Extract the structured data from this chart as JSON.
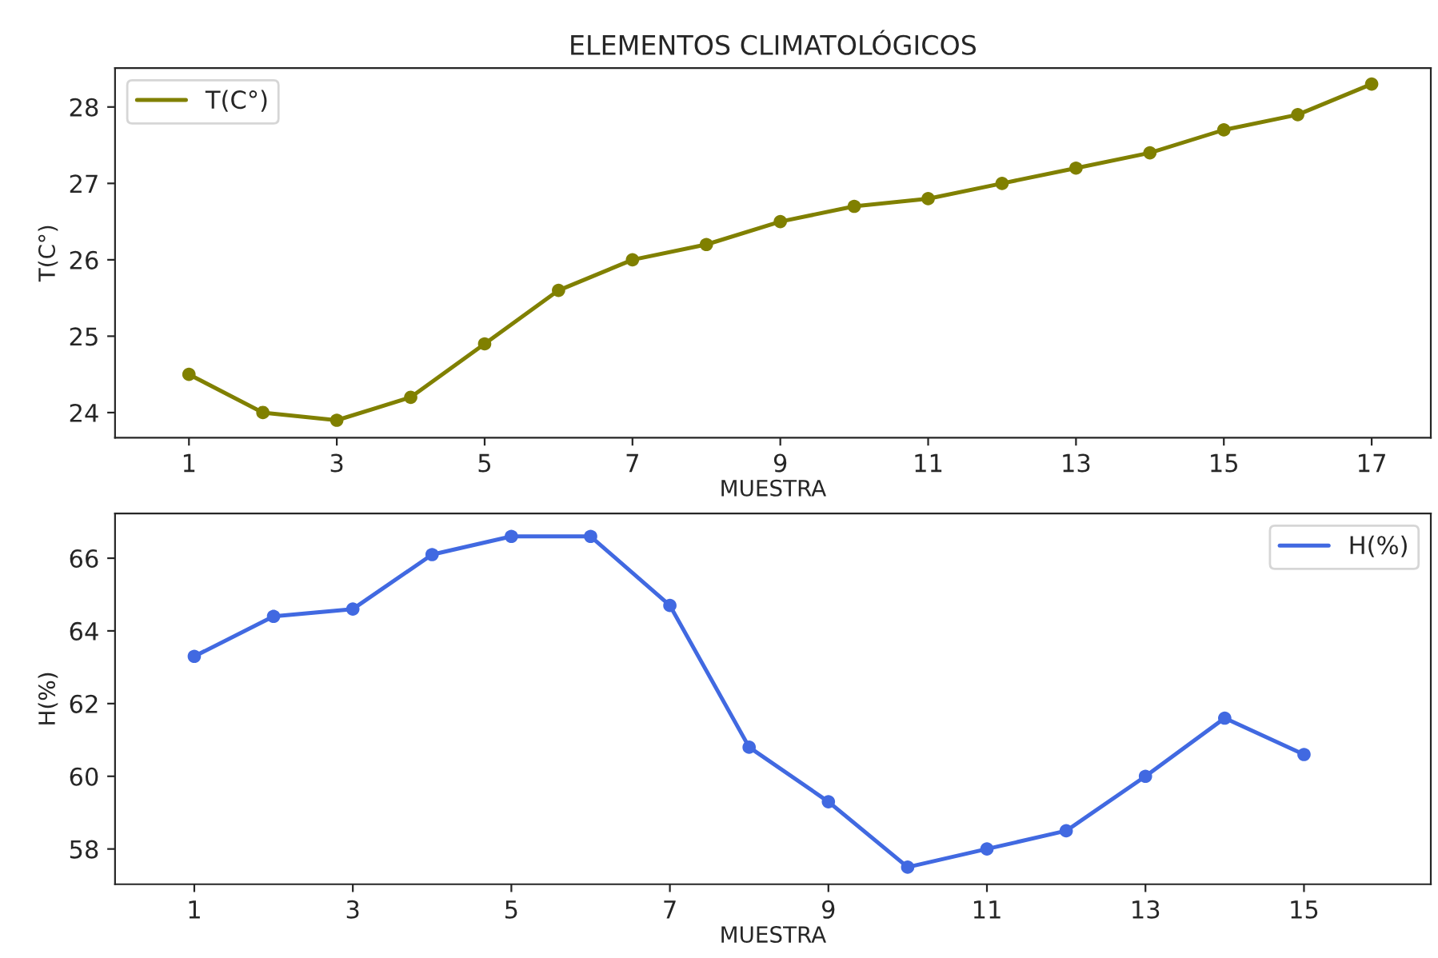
{
  "chart_data": [
    {
      "type": "line",
      "title": "ELEMENTOS CLIMATOLÓGICOS",
      "xlabel": "MUESTRA",
      "ylabel": "T(C°)",
      "x": [
        1,
        2,
        3,
        4,
        5,
        6,
        7,
        8,
        9,
        10,
        11,
        12,
        13,
        14,
        15,
        16,
        17
      ],
      "series": [
        {
          "name": "T(C°)",
          "color": "#808000",
          "values": [
            24.5,
            24.0,
            23.9,
            24.2,
            24.9,
            25.6,
            26.0,
            26.2,
            26.5,
            26.7,
            26.8,
            27.0,
            27.2,
            27.4,
            27.7,
            27.9,
            28.3
          ]
        }
      ],
      "xlim": [
        0.0,
        17.8
      ],
      "xticks": [
        1,
        3,
        5,
        7,
        9,
        11,
        13,
        15,
        17
      ],
      "ylim": [
        23.67,
        28.51
      ],
      "yticks": [
        24,
        25,
        26,
        27,
        28
      ],
      "marker": "circle",
      "legend": "top left",
      "grid": false
    },
    {
      "type": "line",
      "xlabel": "MUESTRA",
      "ylabel": "H(%)",
      "x": [
        1,
        2,
        3,
        4,
        5,
        6,
        7,
        8,
        9,
        10,
        11,
        12,
        13,
        14,
        15
      ],
      "series": [
        {
          "name": "H(%)",
          "color": "#4169e1",
          "values": [
            63.3,
            64.4,
            64.6,
            66.1,
            66.6,
            66.6,
            64.7,
            60.8,
            59.3,
            57.5,
            58.0,
            58.5,
            60.0,
            61.6,
            60.6
          ]
        }
      ],
      "xlim": [
        0.0,
        16.6
      ],
      "xticks": [
        1,
        3,
        5,
        7,
        9,
        11,
        13,
        15
      ],
      "ylim": [
        57.03,
        67.23
      ],
      "yticks": [
        58,
        60,
        62,
        64,
        66
      ],
      "marker": "circle",
      "legend": "top right",
      "grid": false
    }
  ]
}
